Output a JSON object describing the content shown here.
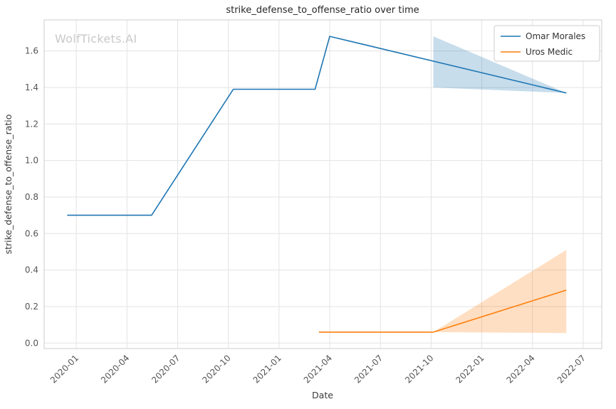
{
  "chart_data": {
    "type": "line",
    "title": "strike_defense_to_offense_ratio over time",
    "xlabel": "Date",
    "ylabel": "strike_defense_to_offense_ratio",
    "watermark": "WolfTickets.AI",
    "grid": true,
    "legend_position": "top-right",
    "x_ticks": [
      "2020-01",
      "2020-04",
      "2020-07",
      "2020-10",
      "2021-01",
      "2021-04",
      "2021-07",
      "2021-10",
      "2022-01",
      "2022-04",
      "2022-07"
    ],
    "y_ticks": [
      0.0,
      0.2,
      0.4,
      0.6,
      0.8,
      1.0,
      1.2,
      1.4,
      1.6
    ],
    "x_range_months": [
      -1.9,
      31.1
    ],
    "y_range": [
      -0.03,
      1.77
    ],
    "colors": {
      "grid": "#e3e3e3",
      "spine": "#cccccc",
      "background": "#ffffff"
    },
    "series": [
      {
        "name": "Omar Morales",
        "color": "#1f77b4",
        "points": [
          {
            "date": "2019-12-15",
            "value": 0.7
          },
          {
            "date": "2020-05-15",
            "value": 0.7
          },
          {
            "date": "2020-10-10",
            "value": 1.39
          },
          {
            "date": "2021-03-05",
            "value": 1.39
          },
          {
            "date": "2021-04-01",
            "value": 1.68
          },
          {
            "date": "2022-06-01",
            "value": 1.37
          }
        ],
        "band": [
          {
            "date": "2021-10-05",
            "lo": 1.4,
            "hi": 1.68
          },
          {
            "date": "2022-06-01",
            "lo": 1.37,
            "hi": 1.37
          }
        ]
      },
      {
        "name": "Uros Medic",
        "color": "#ff7f0e",
        "points": [
          {
            "date": "2021-03-12",
            "value": 0.06
          },
          {
            "date": "2021-10-05",
            "value": 0.06
          },
          {
            "date": "2022-06-01",
            "value": 0.29
          }
        ],
        "band": [
          {
            "date": "2021-10-05",
            "lo": 0.06,
            "hi": 0.06
          },
          {
            "date": "2022-06-01",
            "lo": 0.055,
            "hi": 0.51
          }
        ]
      }
    ]
  }
}
